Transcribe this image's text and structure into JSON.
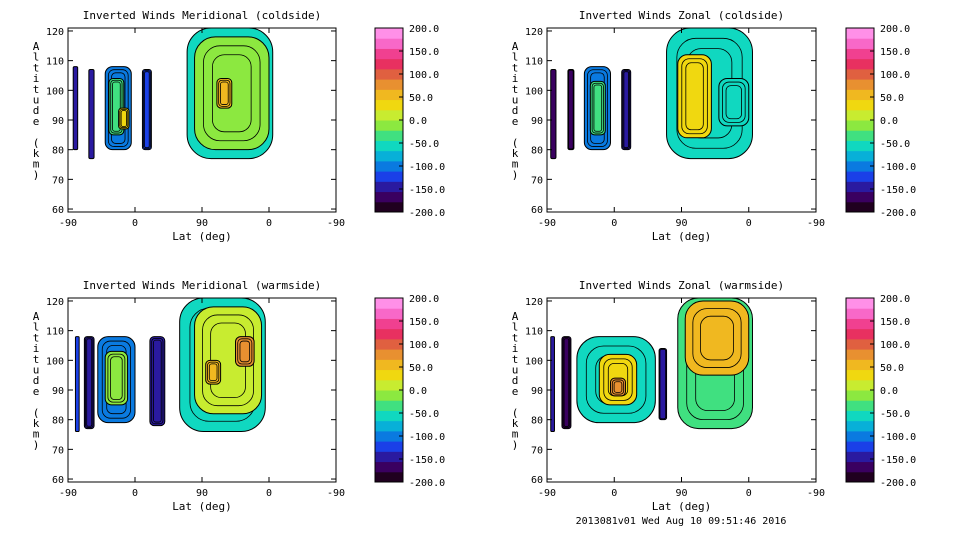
{
  "footer": "2013081v01 Wed Aug 10 09:51:46 2016",
  "colorbar": {
    "ticks": [
      "200.0",
      "150.0",
      "100.0",
      "50.0",
      "0.0",
      "-50.0",
      "-100.0",
      "-150.0",
      "-200.0"
    ],
    "colors": [
      "#200020",
      "#3a0060",
      "#2a1aa0",
      "#1a40e8",
      "#0a7ae0",
      "#08b0d8",
      "#10d8c0",
      "#40e080",
      "#8ce840",
      "#c8ec30",
      "#f0d810",
      "#f0b820",
      "#e89030",
      "#e06040",
      "#e83060",
      "#f04090",
      "#f868c8",
      "#ff90e8"
    ]
  },
  "chart_data": [
    {
      "type": "heatmap",
      "title": "Inverted Winds Meridional (coldside)",
      "xlabel": "Lat (deg)",
      "ylabel": "Altitude (km)",
      "xticks": [
        "-90",
        "0",
        "90",
        "0",
        "-90"
      ],
      "yticks": [
        "60",
        "70",
        "80",
        "90",
        "100",
        "110",
        "120"
      ],
      "ylim": [
        59,
        121
      ],
      "zlim": [
        -200,
        200
      ],
      "blobs": [
        {
          "x": [
            -83,
            -77
          ],
          "y": [
            80,
            108
          ],
          "z": -150
        },
        {
          "x": [
            -62,
            -55
          ],
          "y": [
            77,
            107
          ],
          "z": -160
        },
        {
          "x": [
            -40,
            -5
          ],
          "y": [
            80,
            108
          ],
          "z": -100
        },
        {
          "x": [
            -35,
            -15
          ],
          "y": [
            85,
            104
          ],
          "z": -40
        },
        {
          "x": [
            -22,
            -8
          ],
          "y": [
            87,
            94
          ],
          "z": 40
        },
        {
          "x": [
            10,
            22
          ],
          "y": [
            80,
            107
          ],
          "z": -140
        },
        {
          "x": [
            70,
            185
          ],
          "y": [
            77,
            121
          ],
          "z": -70
        },
        {
          "x": [
            80,
            180
          ],
          "y": [
            80,
            118
          ],
          "z": -20
        },
        {
          "x": [
            110,
            130
          ],
          "y": [
            94,
            104
          ],
          "z": 60
        }
      ]
    },
    {
      "type": "heatmap",
      "title": "Inverted Winds Zonal (coldside)",
      "xlabel": "Lat (deg)",
      "ylabel": "Altitude (km)",
      "xticks": [
        "-90",
        "0",
        "90",
        "0",
        "-90"
      ],
      "yticks": [
        "60",
        "70",
        "80",
        "90",
        "100",
        "110",
        "120"
      ],
      "ylim": [
        59,
        121
      ],
      "zlim": [
        -200,
        200
      ],
      "blobs": [
        {
          "x": [
            -85,
            -78
          ],
          "y": [
            77,
            107
          ],
          "z": -170
        },
        {
          "x": [
            -62,
            -54
          ],
          "y": [
            80,
            107
          ],
          "z": -170
        },
        {
          "x": [
            -40,
            -5
          ],
          "y": [
            80,
            108
          ],
          "z": -110
        },
        {
          "x": [
            -32,
            -12
          ],
          "y": [
            85,
            103
          ],
          "z": -40
        },
        {
          "x": [
            10,
            22
          ],
          "y": [
            80,
            107
          ],
          "z": -150
        },
        {
          "x": [
            70,
            185
          ],
          "y": [
            77,
            121
          ],
          "z": -60
        },
        {
          "x": [
            85,
            130
          ],
          "y": [
            84,
            112
          ],
          "z": 30
        },
        {
          "x": [
            140,
            180
          ],
          "y": [
            88,
            104
          ],
          "z": -70
        }
      ]
    },
    {
      "type": "heatmap",
      "title": "Inverted Winds Meridional (warmside)",
      "xlabel": "Lat (deg)",
      "ylabel": "Altitude (km)",
      "xticks": [
        "-90",
        "0",
        "90",
        "0",
        "-90"
      ],
      "yticks": [
        "60",
        "70",
        "80",
        "90",
        "100",
        "110",
        "120"
      ],
      "ylim": [
        59,
        121
      ],
      "zlim": [
        -200,
        200
      ],
      "blobs": [
        {
          "x": [
            -80,
            -75
          ],
          "y": [
            76,
            108
          ],
          "z": -140
        },
        {
          "x": [
            -68,
            -55
          ],
          "y": [
            77,
            108
          ],
          "z": -150
        },
        {
          "x": [
            -50,
            0
          ],
          "y": [
            79,
            108
          ],
          "z": -100
        },
        {
          "x": [
            -40,
            -10
          ],
          "y": [
            85,
            103
          ],
          "z": -20
        },
        {
          "x": [
            20,
            40
          ],
          "y": [
            78,
            108
          ],
          "z": -150
        },
        {
          "x": [
            60,
            175
          ],
          "y": [
            76,
            121
          ],
          "z": -60
        },
        {
          "x": [
            80,
            170
          ],
          "y": [
            82,
            118
          ],
          "z": 10
        },
        {
          "x": [
            135,
            160
          ],
          "y": [
            98,
            108
          ],
          "z": 90
        },
        {
          "x": [
            95,
            115
          ],
          "y": [
            92,
            100
          ],
          "z": 70
        }
      ]
    },
    {
      "type": "heatmap",
      "title": "Inverted Winds Zonal (warmside)",
      "xlabel": "Lat (deg)",
      "ylabel": "Altitude (km)",
      "xticks": [
        "-90",
        "0",
        "90",
        "0",
        "-90"
      ],
      "yticks": [
        "60",
        "70",
        "80",
        "90",
        "100",
        "110",
        "120"
      ],
      "ylim": [
        59,
        121
      ],
      "zlim": [
        -200,
        200
      ],
      "blobs": [
        {
          "x": [
            -85,
            -80
          ],
          "y": [
            76,
            108
          ],
          "z": -160
        },
        {
          "x": [
            -70,
            -58
          ],
          "y": [
            77,
            108
          ],
          "z": -170
        },
        {
          "x": [
            -50,
            55
          ],
          "y": [
            79,
            108
          ],
          "z": -70
        },
        {
          "x": [
            -20,
            30
          ],
          "y": [
            85,
            102
          ],
          "z": 40
        },
        {
          "x": [
            -5,
            15
          ],
          "y": [
            88,
            94
          ],
          "z": 90
        },
        {
          "x": [
            60,
            70
          ],
          "y": [
            80,
            104
          ],
          "z": -150
        },
        {
          "x": [
            85,
            185
          ],
          "y": [
            77,
            121
          ],
          "z": -30
        },
        {
          "x": [
            95,
            180
          ],
          "y": [
            95,
            120
          ],
          "z": 50
        }
      ]
    }
  ]
}
